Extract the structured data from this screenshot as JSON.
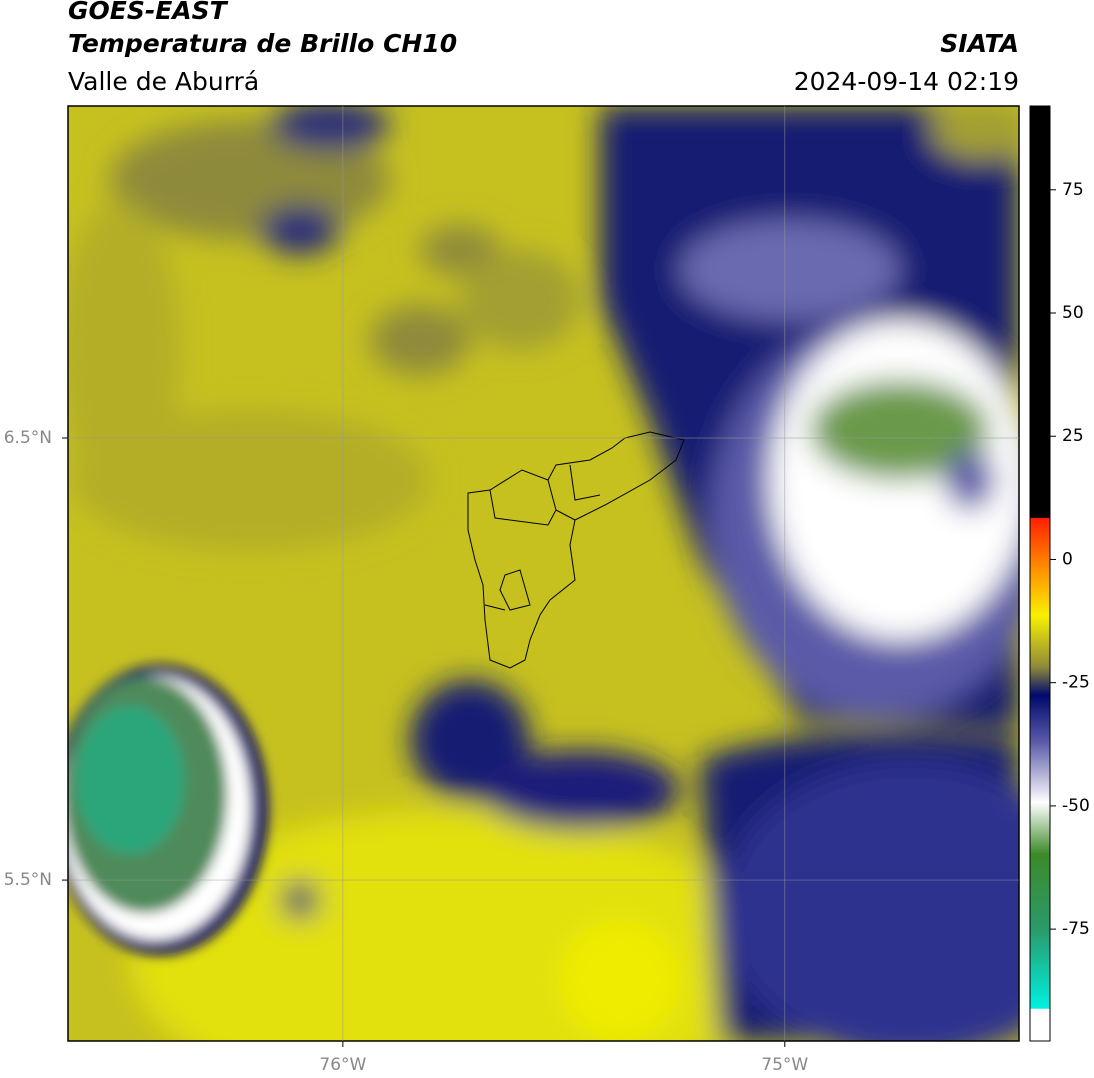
{
  "header": {
    "satellite": "GOES-EAST",
    "product": "Temperatura de Brillo CH10",
    "region": "Valle de Aburrá",
    "agency": "SIATA",
    "datetime": "2024-09-14 02:19"
  },
  "map": {
    "lonlim": [
      -76.622,
      -74.47
    ],
    "latlim": [
      5.136,
      7.251
    ],
    "lonticks": [
      {
        "value": -76,
        "label": "76°W"
      },
      {
        "value": -75,
        "label": "75°W"
      }
    ],
    "latticks": [
      {
        "value": 6.5,
        "label": "6.5°N"
      },
      {
        "value": 5.5,
        "label": "5.5°N"
      }
    ]
  },
  "colorbar": {
    "lim": [
      -97.7,
      92
    ],
    "ticks": [
      75,
      50,
      25,
      0,
      -25,
      -50,
      -75
    ]
  }
}
